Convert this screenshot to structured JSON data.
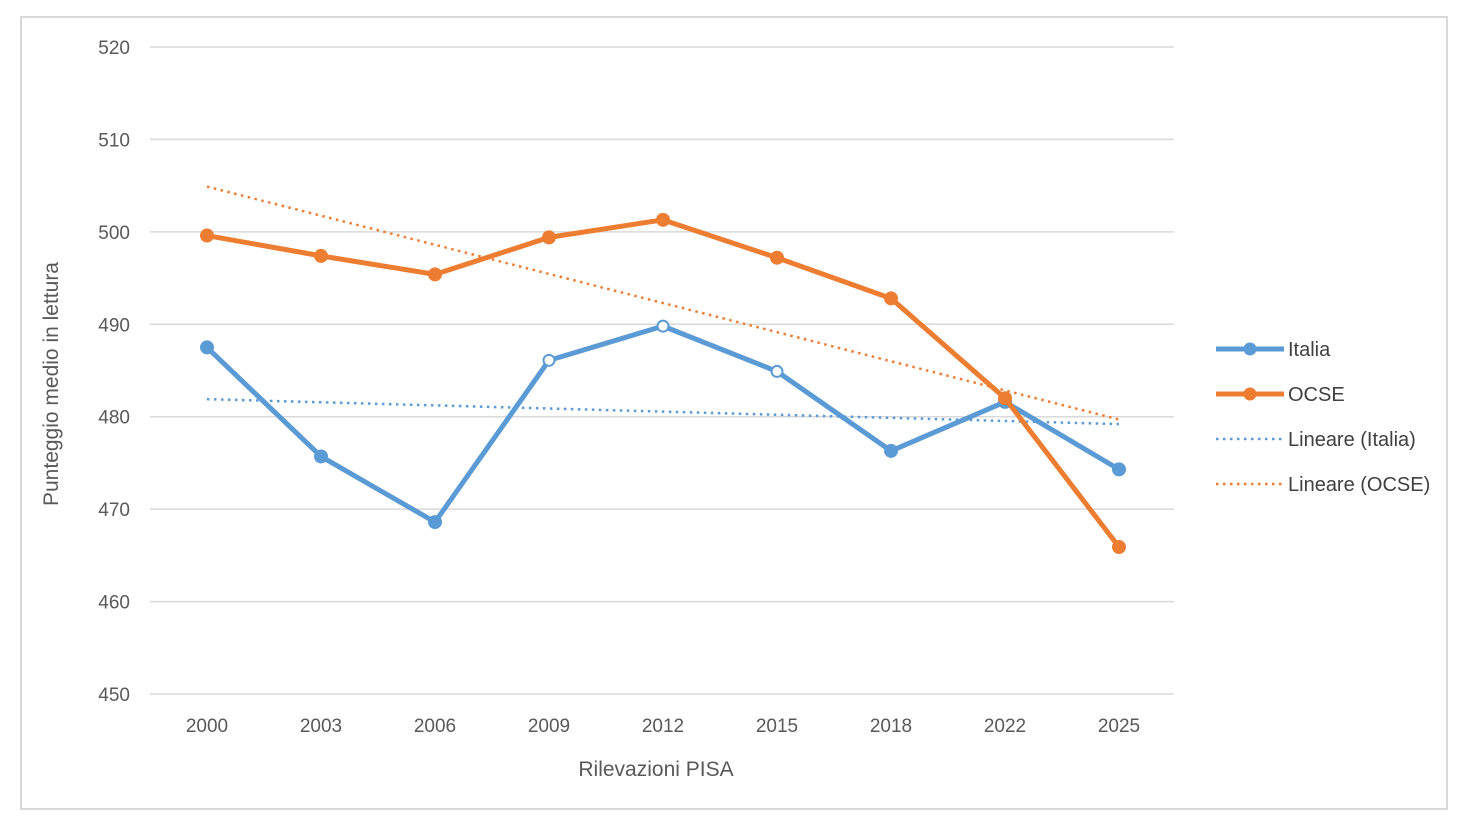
{
  "chart_data": {
    "type": "line",
    "title": "",
    "xlabel": "Rilevazioni PISA",
    "ylabel": "Punteggio medio in lettura",
    "categories": [
      "2000",
      "2003",
      "2006",
      "2009",
      "2012",
      "2015",
      "2018",
      "2022",
      "2025"
    ],
    "ylim": [
      450,
      520
    ],
    "yticks": [
      450,
      460,
      470,
      480,
      490,
      500,
      510,
      520
    ],
    "grid": true,
    "legend_position": "right",
    "series": [
      {
        "name": "Italia",
        "color": "#5b9bd5",
        "values": [
          487.5,
          475.7,
          468.6,
          486.1,
          489.8,
          484.9,
          476.3,
          481.6,
          474.3
        ],
        "hollow_markers": [
          3,
          4,
          5
        ]
      },
      {
        "name": "OCSE",
        "color": "#ed7d31",
        "values": [
          499.6,
          497.4,
          495.4,
          499.4,
          501.3,
          497.2,
          492.8,
          482.0,
          465.9
        ]
      }
    ],
    "trendlines": [
      {
        "name": "Lineare (Italia)",
        "color": "#5b9bd5",
        "start": 481.9,
        "end": 479.2
      },
      {
        "name": "Lineare (OCSE)",
        "color": "#ed7d31",
        "start": 504.9,
        "end": 479.7
      }
    ]
  }
}
